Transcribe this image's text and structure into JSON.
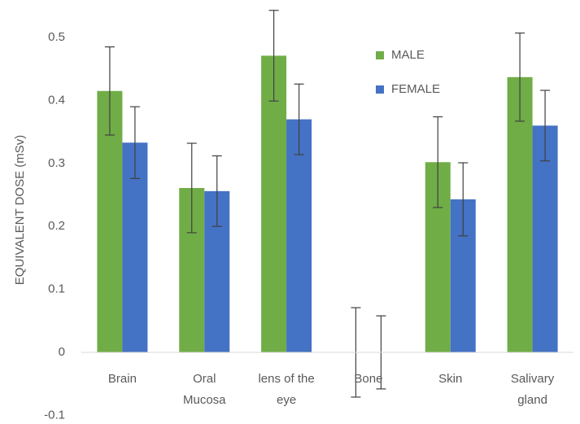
{
  "chart_data": {
    "type": "bar",
    "title": "",
    "xlabel": "",
    "ylabel": "EQUIVALENT DOSE (mSv)",
    "ylim": [
      -0.1,
      0.5
    ],
    "yticks": [
      0.5,
      0.4,
      0.3,
      0.2,
      0.1,
      0,
      -0.1
    ],
    "ytick_labels": [
      "0.5",
      "0.4",
      "0.3",
      "0.2",
      "0.1",
      "0",
      "-0.1"
    ],
    "grid": false,
    "legend_position": "top-right",
    "categories": [
      [
        "Brain"
      ],
      [
        "Oral",
        "Mucosa"
      ],
      [
        "lens of the",
        "eye"
      ],
      [
        "Bone"
      ],
      [
        "Skin"
      ],
      [
        "Salivary",
        "gland"
      ]
    ],
    "series": [
      {
        "name": "MALE",
        "color": "#70AD47",
        "values": [
          0.415,
          0.261,
          0.471,
          0,
          0.302,
          0.437
        ],
        "error": [
          0.07,
          0.071,
          0.072,
          0.071,
          0.072,
          0.07
        ]
      },
      {
        "name": "FEMALE",
        "color": "#4472C4",
        "values": [
          0.333,
          0.256,
          0.37,
          0,
          0.243,
          0.36
        ],
        "error": [
          0.057,
          0.056,
          0.056,
          0.058,
          0.058,
          0.056
        ]
      }
    ]
  }
}
